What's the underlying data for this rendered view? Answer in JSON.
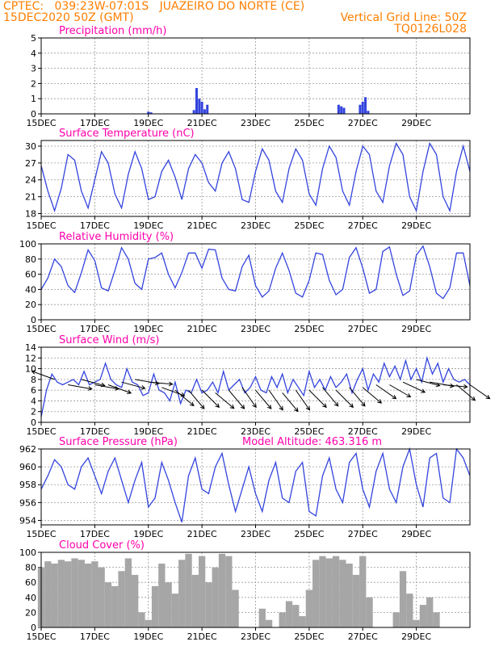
{
  "header": {
    "line1": "CPTEC:   039:23W-07:01S   JUAZEIRO DO NORTE (CE)",
    "line2_left": "15DEC2020 50Z (GMT)",
    "line2_right": "Vertical Grid Line: 50Z",
    "line3_right": "TQ0126L028"
  },
  "colors": {
    "header": "#ff7f00",
    "title": "#ff00aa",
    "series": "#3344dd",
    "cloud": "#a6a6a6",
    "grid": "#999999"
  },
  "x_tick_labels": [
    "15DEC",
    "17DEC",
    "19DEC",
    "21DEC",
    "23DEC",
    "25DEC",
    "27DEC",
    "29DEC"
  ],
  "x_tick_days": [
    15,
    17,
    19,
    21,
    23,
    25,
    27,
    29
  ],
  "x_range_days": [
    15,
    31
  ],
  "model_altitude": "Model Altitude: 463.316 m",
  "chart_data": [
    {
      "id": "precip",
      "type": "bar",
      "title": "Precipitation (mm/h)",
      "ylim": [
        0,
        5
      ],
      "yticks": [
        0,
        1,
        2,
        3,
        4,
        5
      ],
      "x": [
        16.05,
        16.25,
        16.45,
        16.65,
        16.85,
        17.05,
        17.25,
        17.45,
        17.65,
        17.85,
        18.05,
        18.25,
        18.45,
        18.65,
        18.85,
        19.05,
        19.25,
        19.45,
        19.65,
        19.85,
        20.05,
        20.25,
        20.45,
        20.65,
        20.85,
        21.05,
        21.25,
        21.45,
        21.65,
        21.85,
        22.05,
        22.25,
        22.45,
        22.65,
        22.85,
        23.05,
        23.25,
        23.45,
        23.65,
        23.85,
        24.05,
        24.25,
        24.45,
        24.65,
        24.85,
        25.05,
        25.25,
        25.45,
        25.65,
        25.85,
        26.05,
        26.25,
        26.45,
        26.65,
        26.85,
        27.05,
        27.25,
        27.45,
        27.65,
        27.85,
        28.05,
        28.25,
        28.45,
        28.65,
        28.85,
        29.05,
        29.25,
        29.45,
        29.65,
        29.85,
        30.05,
        30.25,
        30.45,
        30.65,
        30.85,
        19.0,
        19.1,
        20.7,
        20.8,
        20.9,
        21.0,
        21.1,
        21.2,
        26.1,
        26.2,
        26.3,
        26.9,
        27.0,
        27.1,
        27.2
      ],
      "values": [
        0.02,
        0.02,
        0.02,
        0.02,
        0.02,
        0.02,
        0.02,
        0.02,
        0.02,
        0.02,
        0.02,
        0.02,
        0.02,
        0.02,
        0.02,
        0.02,
        0.02,
        0.02,
        0.02,
        0.02,
        0.02,
        0.02,
        0.02,
        0.02,
        0.02,
        0.02,
        0.02,
        0.02,
        0.02,
        0.02,
        0.02,
        0.02,
        0.02,
        0.02,
        0.02,
        0.02,
        0.02,
        0.02,
        0.02,
        0.02,
        0.02,
        0.02,
        0.02,
        0.02,
        0.02,
        0.02,
        0.02,
        0.02,
        0.02,
        0.02,
        0.02,
        0.02,
        0.02,
        0.02,
        0.02,
        0.02,
        0.02,
        0.02,
        0.02,
        0.02,
        0.02,
        0.02,
        0.02,
        0.02,
        0.02,
        0.02,
        0.02,
        0.02,
        0.02,
        0.02,
        0.02,
        0.02,
        0.02,
        0.02,
        0.02,
        0.15,
        0.1,
        0.25,
        1.7,
        1.0,
        0.8,
        0.3,
        0.6,
        0.6,
        0.5,
        0.4,
        0.6,
        0.8,
        1.1,
        0.2
      ]
    },
    {
      "id": "temp",
      "type": "line",
      "title": "Surface Temperature (nC)",
      "ylim": [
        17.5,
        31
      ],
      "yticks": [
        18,
        21,
        24,
        27,
        30
      ],
      "x": [
        15.0,
        15.25,
        15.5,
        15.75,
        16.0,
        16.25,
        16.5,
        16.75,
        17.0,
        17.25,
        17.5,
        17.75,
        18.0,
        18.25,
        18.5,
        18.75,
        19.0,
        19.25,
        19.5,
        19.75,
        20.0,
        20.25,
        20.5,
        20.75,
        21.0,
        21.25,
        21.5,
        21.75,
        22.0,
        22.25,
        22.5,
        22.75,
        23.0,
        23.25,
        23.5,
        23.75,
        24.0,
        24.25,
        24.5,
        24.75,
        25.0,
        25.25,
        25.5,
        25.75,
        26.0,
        26.25,
        26.5,
        26.75,
        27.0,
        27.25,
        27.5,
        27.75,
        28.0,
        28.25,
        28.5,
        28.75,
        29.0,
        29.25,
        29.5,
        29.75,
        30.0,
        30.25,
        30.5,
        30.75,
        31.0
      ],
      "values": [
        26.5,
        22.0,
        18.5,
        22.5,
        28.5,
        27.5,
        22.0,
        19.0,
        24.0,
        29.0,
        27.0,
        21.5,
        19.0,
        25.0,
        29.0,
        26.0,
        20.5,
        21.0,
        25.5,
        27.5,
        24.5,
        20.5,
        26.0,
        28.5,
        27.0,
        23.5,
        22.0,
        27.0,
        29.0,
        26.0,
        20.5,
        20.0,
        25.5,
        29.5,
        27.5,
        22.0,
        20.0,
        26.0,
        29.5,
        27.5,
        21.5,
        19.5,
        26.0,
        30.0,
        28.0,
        22.0,
        19.5,
        25.5,
        30.0,
        28.5,
        22.0,
        20.0,
        26.5,
        30.5,
        28.5,
        21.0,
        18.5,
        25.5,
        30.5,
        28.5,
        21.0,
        18.5,
        25.5,
        30.0,
        25.5
      ]
    },
    {
      "id": "rh",
      "type": "line",
      "title": "Relative Humidity (%)",
      "ylim": [
        0,
        100
      ],
      "yticks": [
        0,
        20,
        40,
        60,
        80,
        100
      ],
      "x": [
        15.0,
        15.25,
        15.5,
        15.75,
        16.0,
        16.25,
        16.5,
        16.75,
        17.0,
        17.25,
        17.5,
        17.75,
        18.0,
        18.25,
        18.5,
        18.75,
        19.0,
        19.25,
        19.5,
        19.75,
        20.0,
        20.25,
        20.5,
        20.75,
        21.0,
        21.25,
        21.5,
        21.75,
        22.0,
        22.25,
        22.5,
        22.75,
        23.0,
        23.25,
        23.5,
        23.75,
        24.0,
        24.25,
        24.5,
        24.75,
        25.0,
        25.25,
        25.5,
        25.75,
        26.0,
        26.25,
        26.5,
        26.75,
        27.0,
        27.25,
        27.5,
        27.75,
        28.0,
        28.25,
        28.5,
        28.75,
        29.0,
        29.25,
        29.5,
        29.75,
        30.0,
        30.25,
        30.5,
        30.75,
        31.0
      ],
      "values": [
        40,
        55,
        80,
        70,
        45,
        36,
        62,
        92,
        78,
        42,
        38,
        65,
        95,
        80,
        48,
        40,
        80,
        82,
        88,
        60,
        42,
        62,
        88,
        88,
        68,
        93,
        92,
        55,
        40,
        38,
        70,
        85,
        45,
        30,
        38,
        68,
        88,
        65,
        35,
        30,
        52,
        88,
        86,
        52,
        33,
        40,
        82,
        95,
        68,
        35,
        40,
        90,
        96,
        60,
        32,
        38,
        85,
        97,
        70,
        35,
        28,
        42,
        88,
        88,
        45
      ]
    },
    {
      "id": "wind",
      "type": "line",
      "title": "Surface Wind (m/s)",
      "ylim": [
        0,
        14
      ],
      "yticks": [
        0,
        2,
        4,
        6,
        8,
        10,
        12,
        14
      ],
      "x": [
        15.0,
        15.2,
        15.4,
        15.6,
        15.8,
        16.0,
        16.2,
        16.4,
        16.6,
        16.8,
        17.0,
        17.2,
        17.4,
        17.6,
        17.8,
        18.0,
        18.2,
        18.4,
        18.6,
        18.8,
        19.0,
        19.2,
        19.4,
        19.6,
        19.8,
        20.0,
        20.2,
        20.4,
        20.6,
        20.8,
        21.0,
        21.2,
        21.4,
        21.6,
        21.8,
        22.0,
        22.2,
        22.4,
        22.6,
        22.8,
        23.0,
        23.2,
        23.4,
        23.6,
        23.8,
        24.0,
        24.2,
        24.4,
        24.6,
        24.8,
        25.0,
        25.2,
        25.4,
        25.6,
        25.8,
        26.0,
        26.2,
        26.4,
        26.6,
        26.8,
        27.0,
        27.2,
        27.4,
        27.6,
        27.8,
        28.0,
        28.2,
        28.4,
        28.6,
        28.8,
        29.0,
        29.2,
        29.4,
        29.6,
        29.8,
        30.0,
        30.2,
        30.4,
        30.6,
        30.8,
        31.0
      ],
      "values": [
        1.0,
        6.0,
        9.0,
        7.5,
        7.0,
        7.5,
        8.0,
        7.0,
        9.5,
        7.0,
        7.5,
        8.0,
        11.0,
        8.0,
        7.0,
        6.5,
        10.0,
        7.5,
        7.0,
        5.0,
        5.5,
        9.0,
        6.0,
        5.5,
        4.0,
        7.5,
        3.5,
        6.0,
        5.5,
        8.0,
        5.5,
        6.0,
        7.5,
        5.5,
        9.5,
        6.0,
        7.0,
        8.0,
        5.5,
        6.5,
        8.5,
        6.0,
        5.5,
        8.5,
        6.5,
        9.0,
        5.5,
        8.0,
        6.5,
        5.0,
        9.5,
        6.5,
        8.0,
        6.0,
        8.5,
        6.5,
        7.5,
        9.0,
        5.5,
        8.0,
        10.0,
        6.0,
        9.0,
        7.5,
        11.0,
        8.5,
        10.5,
        8.0,
        11.5,
        8.0,
        10.0,
        7.5,
        12.0,
        9.0,
        11.0,
        7.5,
        10.0,
        8.0,
        7.5,
        8.0,
        7.0
      ],
      "arrows": {
        "x": [
          15.5,
          16.0,
          16.5,
          17.0,
          17.5,
          18.0,
          18.5,
          19.0,
          19.5,
          20.0,
          20.5,
          21.0,
          21.5,
          22.0,
          22.5,
          23.0,
          23.5,
          24.0,
          24.5,
          25.0,
          25.5,
          26.0,
          26.5,
          27.0,
          27.5,
          28.0,
          28.5,
          29.0,
          29.5,
          30.0,
          30.5,
          31.0
        ],
        "speed": [
          8.0,
          7.0,
          8.0,
          7.0,
          7.0,
          7.5,
          8.0,
          7.5,
          6.5,
          6.0,
          6.0,
          6.0,
          5.5,
          6.0,
          6.5,
          6.0,
          6.0,
          5.5,
          6.0,
          6.0,
          6.5,
          6.0,
          6.5,
          6.5,
          7.0,
          7.0,
          7.5,
          8.0,
          7.5,
          7.0,
          7.0,
          7.0
        ],
        "dir_deg": [
          250,
          80,
          75,
          80,
          70,
          75,
          80,
          85,
          70,
          50,
          40,
          45,
          50,
          40,
          35,
          40,
          35,
          40,
          35,
          45,
          40,
          45,
          40,
          50,
          55,
          60,
          65,
          75,
          80,
          85,
          50,
          55
        ]
      }
    },
    {
      "id": "pressure",
      "type": "line",
      "title": "Surface Pressure (hPa)",
      "ylim": [
        953.5,
        962
      ],
      "yticks": [
        954,
        956,
        958,
        960,
        962
      ],
      "x": [
        15.0,
        15.25,
        15.5,
        15.75,
        16.0,
        16.25,
        16.5,
        16.75,
        17.0,
        17.25,
        17.5,
        17.75,
        18.0,
        18.25,
        18.5,
        18.75,
        19.0,
        19.25,
        19.5,
        19.75,
        20.0,
        20.25,
        20.5,
        20.75,
        21.0,
        21.25,
        21.5,
        21.75,
        22.0,
        22.25,
        22.5,
        22.75,
        23.0,
        23.25,
        23.5,
        23.75,
        24.0,
        24.25,
        24.5,
        24.75,
        25.0,
        25.25,
        25.5,
        25.75,
        26.0,
        26.25,
        26.5,
        26.75,
        27.0,
        27.25,
        27.5,
        27.75,
        28.0,
        28.25,
        28.5,
        28.75,
        29.0,
        29.25,
        29.5,
        29.75,
        30.0,
        30.25,
        30.5,
        30.75,
        31.0
      ],
      "values": [
        957.5,
        959.0,
        960.8,
        960.0,
        958.0,
        957.5,
        960.0,
        961.0,
        959.0,
        957.0,
        959.5,
        961.0,
        958.5,
        956.0,
        958.5,
        960.5,
        955.5,
        956.5,
        960.5,
        958.5,
        956.0,
        953.8,
        959.0,
        961.0,
        957.5,
        957.0,
        960.0,
        961.5,
        958.0,
        955.0,
        957.5,
        960.0,
        957.0,
        955.0,
        958.5,
        960.5,
        956.5,
        956.0,
        959.5,
        960.5,
        955.0,
        954.5,
        959.0,
        961.0,
        957.5,
        956.0,
        960.5,
        961.5,
        957.5,
        955.5,
        959.5,
        961.5,
        957.5,
        956.0,
        960.0,
        962.0,
        958.0,
        955.5,
        961.0,
        961.5,
        956.5,
        956.0,
        962.0,
        961.0,
        959.0
      ]
    },
    {
      "id": "cloud",
      "type": "area",
      "title": "Cloud Cover (%)",
      "ylim": [
        0,
        100
      ],
      "yticks": [
        0,
        20,
        40,
        60,
        80,
        100
      ],
      "x": [
        15.0,
        15.25,
        15.5,
        15.75,
        16.0,
        16.25,
        16.5,
        16.75,
        17.0,
        17.25,
        17.5,
        17.75,
        18.0,
        18.25,
        18.5,
        18.75,
        19.0,
        19.25,
        19.5,
        19.75,
        20.0,
        20.25,
        20.5,
        20.75,
        21.0,
        21.25,
        21.5,
        21.75,
        22.0,
        22.25,
        22.5,
        22.75,
        23.0,
        23.25,
        23.5,
        23.75,
        24.0,
        24.25,
        24.5,
        24.75,
        25.0,
        25.25,
        25.5,
        25.75,
        26.0,
        26.25,
        26.5,
        26.75,
        27.0,
        27.25,
        27.5,
        27.75,
        28.0,
        28.25,
        28.5,
        28.75,
        29.0,
        29.25,
        29.5,
        29.75,
        30.0,
        30.25,
        30.5,
        30.75,
        31.0
      ],
      "values": [
        80,
        88,
        85,
        90,
        88,
        92,
        90,
        85,
        88,
        80,
        60,
        55,
        75,
        92,
        70,
        20,
        10,
        55,
        85,
        60,
        45,
        90,
        98,
        70,
        95,
        60,
        80,
        98,
        95,
        50,
        0,
        0,
        0,
        25,
        10,
        0,
        20,
        35,
        30,
        15,
        50,
        90,
        95,
        92,
        95,
        90,
        85,
        70,
        95,
        40,
        0,
        0,
        0,
        20,
        75,
        45,
        10,
        30,
        40,
        20,
        0,
        0,
        0,
        0,
        0
      ]
    }
  ]
}
